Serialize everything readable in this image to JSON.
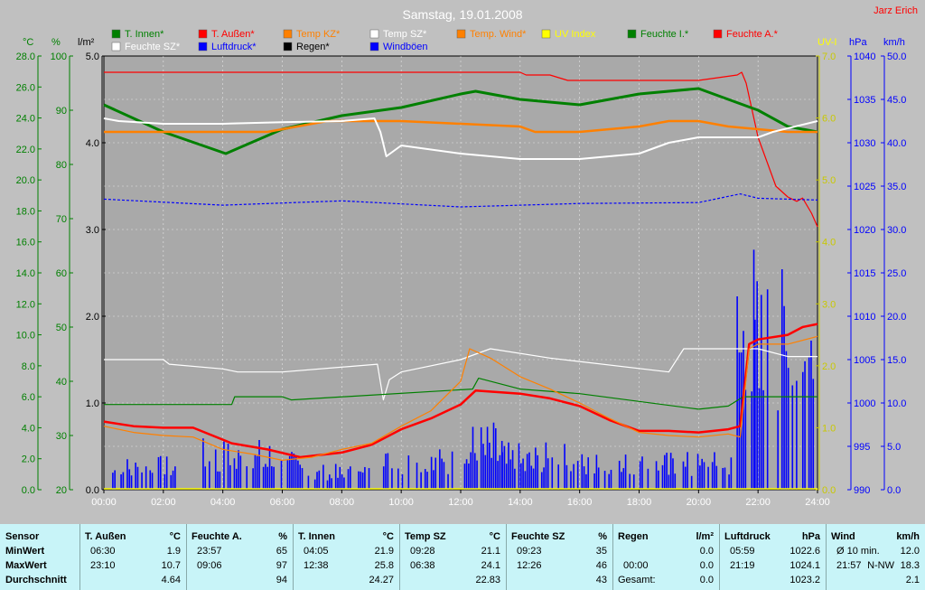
{
  "title": "Samstag, 19.01.2008",
  "author": "Jarz Erich",
  "axes": {
    "left_units": [
      "°C",
      "%",
      "l/m²"
    ],
    "right_units": [
      "UV-I",
      "hPa",
      "km/h"
    ],
    "temp_ticks": [
      "28.0",
      "26.0",
      "24.0",
      "22.0",
      "20.0",
      "18.0",
      "16.0",
      "14.0",
      "12.0",
      "10.0",
      "8.0",
      "6.0",
      "4.0",
      "2.0",
      "0.0"
    ],
    "hum_ticks": [
      "100",
      "90",
      "80",
      "70",
      "60",
      "50",
      "40",
      "30",
      "20"
    ],
    "rain_ticks": [
      "5.0",
      "4.0",
      "3.0",
      "2.0",
      "1.0",
      "0.0"
    ],
    "uv_ticks": [
      "7.0",
      "6.0",
      "5.0",
      "4.0",
      "3.0",
      "2.0",
      "1.0",
      "0.0"
    ],
    "press_ticks": [
      "1040",
      "1035",
      "1030",
      "1025",
      "1020",
      "1015",
      "1010",
      "1005",
      "1000",
      "995",
      "990"
    ],
    "wind_ticks": [
      "50.0",
      "45.0",
      "40.0",
      "35.0",
      "30.0",
      "25.0",
      "20.0",
      "15.0",
      "10.0",
      "5.0",
      "0.0"
    ],
    "time_ticks": [
      "00:00",
      "02:00",
      "04:00",
      "06:00",
      "08:00",
      "10:00",
      "12:00",
      "14:00",
      "16:00",
      "18:00",
      "20:00",
      "22:00",
      "24:00"
    ]
  },
  "legend": [
    {
      "label": "T. Innen*",
      "color": "#008000"
    },
    {
      "label": "T. Außen*",
      "color": "#ff0000"
    },
    {
      "label": "Temp KZ*",
      "color": "#ff8000"
    },
    {
      "label": "Temp SZ*",
      "color": "#ffffff"
    },
    {
      "label": "Temp. Wind*",
      "color": "#ff8000"
    },
    {
      "label": "UV Index",
      "color": "#ffff00"
    },
    {
      "label": "Feuchte I.*",
      "color": "#008000"
    },
    {
      "label": "Feuchte A.*",
      "color": "#ff0000"
    },
    {
      "label": "Feuchte SZ*",
      "color": "#ffffff"
    },
    {
      "label": "Luftdruck*",
      "color": "#0000ff"
    },
    {
      "label": "Regen*",
      "color": "#000000"
    },
    {
      "label": "Windböen",
      "color": "#0000ff"
    }
  ],
  "chart_data": {
    "type": "line",
    "x_unit": "hours",
    "xlim": [
      0,
      24
    ],
    "temp_ylim": [
      0,
      28
    ],
    "hum_ylim": [
      20,
      100
    ],
    "press_ylim": [
      990,
      1040
    ],
    "wind_ylim": [
      0,
      50
    ],
    "series": [
      {
        "name": "Feuchte A.*",
        "axis": "hum",
        "color": "#ff0000",
        "width": 1.2,
        "x": [
          0,
          9.1,
          9.2,
          14.0,
          14.2,
          15.0,
          15.6,
          20.0,
          21.3,
          21.45,
          21.6,
          22.0,
          22.6,
          23.0,
          23.3,
          23.5,
          23.8,
          24.0
        ],
        "y": [
          97,
          97,
          97,
          97,
          96.5,
          96.5,
          95.5,
          95.5,
          96.5,
          97,
          95,
          85,
          76,
          74,
          73.2,
          73.8,
          71,
          68.5
        ]
      },
      {
        "name": "Feuchte I.*",
        "axis": "hum",
        "color": "#008000",
        "width": 3,
        "x": [
          0,
          2,
          4.1,
          6,
          8,
          10,
          12,
          12.5,
          14,
          16,
          18,
          20,
          22,
          23,
          24
        ],
        "y": [
          91,
          86,
          82,
          86.5,
          89,
          90.5,
          93,
          93.5,
          92,
          91,
          93,
          94,
          90,
          87,
          86
        ]
      },
      {
        "name": "Temp. Wind*",
        "axis": "hum",
        "color": "#ff8000",
        "width": 2.5,
        "x": [
          0,
          5.5,
          6.5,
          7.5,
          8.5,
          10,
          14,
          14.5,
          16,
          18,
          19,
          20,
          21,
          22,
          23,
          24
        ],
        "y": [
          86,
          86,
          87,
          88,
          88,
          88,
          87,
          86,
          86,
          87,
          88,
          88,
          87,
          86.5,
          86,
          86
        ]
      },
      {
        "name": "Feuchte SZ*",
        "axis": "hum",
        "color": "#ffffff",
        "width": 2,
        "x": [
          0,
          0.5,
          2,
          4,
          6,
          8,
          9.1,
          9.3,
          9.5,
          10,
          12,
          14,
          16,
          18,
          19,
          20,
          22,
          22.5,
          24
        ],
        "y": [
          88.5,
          88,
          87.5,
          87.5,
          87.8,
          88,
          88.5,
          86,
          81.5,
          83.5,
          82,
          81,
          81,
          82,
          84,
          85,
          85,
          86,
          88
        ]
      },
      {
        "name": "Temp SZ*",
        "axis": "temp",
        "color": "#ffffff",
        "width": 1.2,
        "x": [
          0,
          2,
          2.2,
          4,
          4.5,
          6,
          9.2,
          9.4,
          9.6,
          10,
          12,
          13,
          15,
          19,
          19.5,
          22,
          23,
          24
        ],
        "y": [
          8.4,
          8.4,
          8.1,
          7.8,
          7.6,
          7.6,
          8.1,
          5.8,
          7.1,
          7.6,
          8.4,
          9.1,
          8.5,
          7.6,
          9.1,
          9.1,
          8.6,
          8.6
        ]
      },
      {
        "name": "T. Innen*",
        "axis": "temp",
        "color": "#008000",
        "width": 1.2,
        "x": [
          0,
          1,
          4.3,
          4.4,
          6,
          6.3,
          12.4,
          12.6,
          14,
          16,
          20,
          21,
          21.5,
          24
        ],
        "y": [
          5.5,
          5.5,
          5.5,
          6.0,
          6.0,
          5.8,
          6.5,
          7.2,
          6.5,
          6.2,
          5.2,
          5.4,
          6.0,
          6.0
        ]
      },
      {
        "name": "T. Außen*",
        "axis": "temp",
        "color": "#ff0000",
        "width": 2.5,
        "x": [
          0,
          1,
          2,
          3,
          4.3,
          5.5,
          6.6,
          8,
          9,
          10,
          11,
          12,
          12.5,
          14,
          15,
          16,
          17,
          18,
          19,
          20,
          21,
          21.4,
          21.7,
          22,
          23,
          23.5,
          24
        ],
        "y": [
          4.4,
          4.1,
          4.0,
          4.0,
          3.0,
          2.6,
          2.1,
          2.4,
          2.9,
          3.9,
          4.6,
          5.5,
          6.4,
          6.2,
          5.9,
          5.4,
          4.5,
          3.8,
          3.8,
          3.7,
          3.9,
          4.1,
          9.4,
          9.7,
          10.0,
          10.5,
          10.7
        ]
      },
      {
        "name": "Temp KZ*",
        "axis": "temp",
        "color": "#ff8000",
        "width": 1.2,
        "x": [
          0,
          1,
          2,
          3,
          4,
          5,
          6,
          7,
          8,
          9,
          10,
          11,
          12,
          12.3,
          13,
          14,
          15,
          16,
          17,
          18,
          19,
          20,
          21,
          21.4,
          21.7,
          22,
          23,
          24
        ],
        "y": [
          4.1,
          3.7,
          3.5,
          3.4,
          2.6,
          2.3,
          1.9,
          2.1,
          2.6,
          3.0,
          4.1,
          5.1,
          7.0,
          9.1,
          8.5,
          7.3,
          6.5,
          5.6,
          4.6,
          3.7,
          3.5,
          3.4,
          3.6,
          3.4,
          9.1,
          9.4,
          9.4,
          9.9
        ]
      },
      {
        "name": "Luftdruck*",
        "axis": "press",
        "color": "#0000ff",
        "width": 1.2,
        "dash": "3,2",
        "x": [
          0,
          4,
          8,
          12,
          16,
          20,
          21.4,
          22,
          24
        ],
        "y": [
          1023.5,
          1022.8,
          1023.3,
          1022.6,
          1023.0,
          1023.1,
          1024.1,
          1023.6,
          1023.4
        ]
      }
    ],
    "wind_gusts": {
      "name": "Windböen",
      "axis": "wind",
      "color": "#0000ff",
      "segments": [
        {
          "start": 0.3,
          "end": 2.4,
          "peak": 4
        },
        {
          "start": 3.2,
          "end": 5.8,
          "peak": 6
        },
        {
          "start": 5.9,
          "end": 7.0,
          "peak": 4.5
        },
        {
          "start": 7.1,
          "end": 9.0,
          "peak": 3
        },
        {
          "start": 9.2,
          "end": 12.2,
          "peak": 5
        },
        {
          "start": 12.2,
          "end": 13.4,
          "peak": 8
        },
        {
          "start": 13.4,
          "end": 15.8,
          "peak": 5.5
        },
        {
          "start": 15.8,
          "end": 18.2,
          "peak": 4.5
        },
        {
          "start": 18.3,
          "end": 21.1,
          "peak": 4.5
        },
        {
          "start": 21.3,
          "end": 21.9,
          "peak": 30
        },
        {
          "start": 21.9,
          "end": 23.9,
          "peak": 26
        }
      ]
    },
    "uv_index": {
      "name": "UV Index",
      "axis": "uv",
      "color": "#ffff00",
      "values": [
        0,
        0
      ]
    }
  },
  "stats": {
    "sensor": {
      "header": "Sensor",
      "rows": [
        "MinWert",
        "MaxWert",
        "Durchschnitt"
      ]
    },
    "columns": [
      {
        "title": "T. Außen",
        "unit": "°C",
        "min_time": "06:30",
        "min": "1.9",
        "max_time": "23:10",
        "max": "10.7",
        "avg": "4.64"
      },
      {
        "title": "Feuchte A.",
        "unit": "%",
        "min_time": "23:57",
        "min": "65",
        "max_time": "09:06",
        "max": "97",
        "avg": "94"
      },
      {
        "title": "T. Innen",
        "unit": "°C",
        "min_time": "04:05",
        "min": "21.9",
        "max_time": "12:38",
        "max": "25.8",
        "avg": "24.27"
      },
      {
        "title": "Temp SZ",
        "unit": "°C",
        "min_time": "09:28",
        "min": "21.1",
        "max_time": "06:38",
        "max": "24.1",
        "avg": "22.83"
      },
      {
        "title": "Feuchte SZ",
        "unit": "%",
        "min_time": "09:23",
        "min": "35",
        "max_time": "12:26",
        "max": "46",
        "avg": "43"
      },
      {
        "title": "Regen",
        "unit": "l/m²",
        "min_time": "",
        "min": "0.0",
        "max_time": "00:00",
        "max": "0.0",
        "avg_label": "Gesamt:",
        "avg": "0.0"
      },
      {
        "title": "Luftdruck",
        "unit": "hPa",
        "min_time": "05:59",
        "min": "1022.6",
        "max_time": "21:19",
        "max": "1024.1",
        "avg": "1023.2"
      },
      {
        "title": "Wind",
        "unit": "km/h",
        "min_time": "Ø 10 min.",
        "min": "12.0",
        "max_time": "21:57",
        "max_dir": "N-NW",
        "max": "18.3",
        "avg": "2.1"
      }
    ]
  }
}
